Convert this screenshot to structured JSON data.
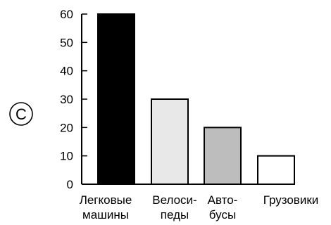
{
  "panel": {
    "label": "C"
  },
  "chart_data": {
    "type": "bar",
    "categories": [
      {
        "lines": [
          "Легковые",
          "машины"
        ]
      },
      {
        "lines": [
          "Велоси-",
          "педы"
        ]
      },
      {
        "lines": [
          "Авто-",
          "бусы"
        ]
      },
      {
        "lines": [
          "Грузовики"
        ]
      }
    ],
    "values": [
      60,
      30,
      20,
      10
    ],
    "bar_colors": [
      "#000000",
      "#e8e8e8",
      "#bdbdbd",
      "#ffffff"
    ],
    "ylim": [
      0,
      60
    ],
    "yticks": [
      "0",
      "10",
      "20",
      "30",
      "40",
      "50",
      "60"
    ],
    "title": "",
    "xlabel": "",
    "ylabel": "",
    "grid": false,
    "legend": "none"
  }
}
